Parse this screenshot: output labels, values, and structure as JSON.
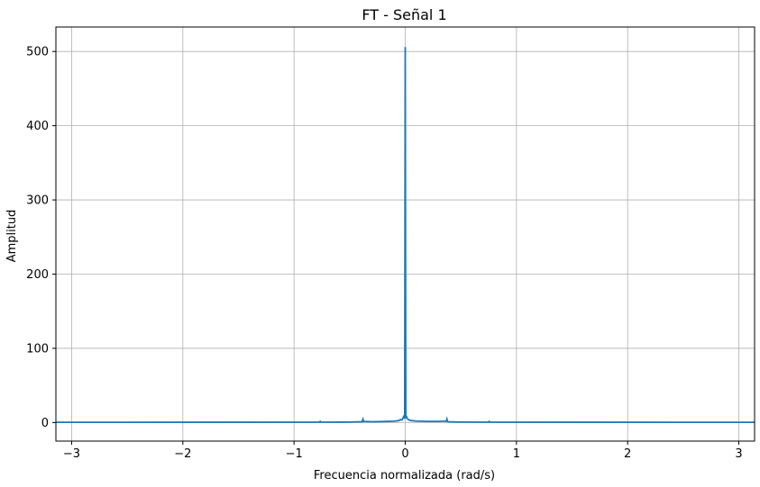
{
  "chart_data": {
    "type": "line",
    "title": "FT - Señal 1",
    "xlabel": "Frecuencia normalizada (rad/s)",
    "ylabel": "Amplitud",
    "xlim": [
      -3.14159,
      3.14159
    ],
    "ylim": [
      -25,
      533
    ],
    "xticks": [
      -3,
      -2,
      -1,
      0,
      1,
      2,
      3
    ],
    "xtick_labels": [
      "−3",
      "−2",
      "−1",
      "0",
      "1",
      "2",
      "3"
    ],
    "yticks": [
      0,
      100,
      200,
      300,
      400,
      500
    ],
    "ytick_labels": [
      "0",
      "100",
      "200",
      "300",
      "400",
      "500"
    ],
    "grid": true,
    "color": "#1f77b4",
    "series": [
      {
        "x": [
          -3.14159,
          -1.5,
          -0.77,
          -0.765,
          -0.76,
          -0.5,
          -0.39,
          -0.38,
          -0.375,
          -0.37,
          -0.3,
          -0.2,
          -0.1,
          -0.06,
          -0.04,
          -0.03,
          -0.02,
          -0.015,
          -0.01,
          -0.005,
          0.0,
          0.005,
          0.01,
          0.015,
          0.02,
          0.03,
          0.04,
          0.06,
          0.1,
          0.2,
          0.3,
          0.37,
          0.375,
          0.38,
          0.39,
          0.5,
          0.75,
          0.755,
          0.76,
          1.5,
          3.14159
        ],
        "y": [
          0.3,
          0.4,
          0.5,
          1.5,
          0.5,
          0.6,
          1.0,
          4.5,
          1.2,
          1.5,
          1.0,
          1.3,
          1.8,
          2.5,
          4.0,
          3.5,
          6.0,
          8.0,
          9.0,
          5.0,
          506.0,
          6.0,
          9.0,
          6.0,
          5.0,
          4.0,
          3.0,
          2.5,
          2.0,
          1.5,
          1.5,
          2.0,
          4.5,
          1.2,
          1.0,
          0.6,
          0.5,
          1.5,
          0.5,
          0.4,
          0.3
        ]
      }
    ]
  }
}
